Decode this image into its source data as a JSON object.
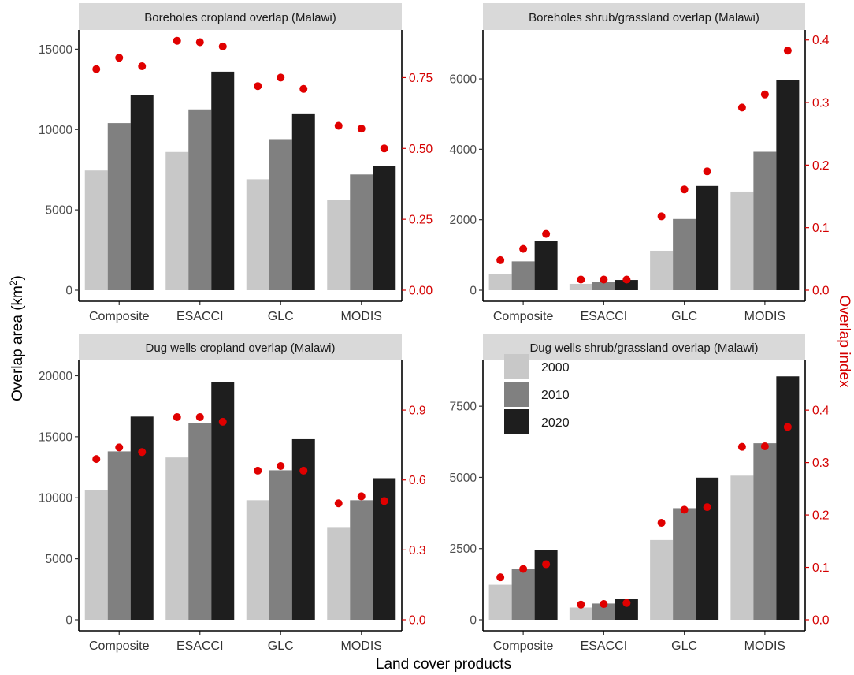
{
  "colors": {
    "y2000": "#c8c8c8",
    "y2010": "#808080",
    "y2020": "#1e1e1e",
    "index": "#e00000",
    "strip": "#d9d9d9"
  },
  "axis_titles": {
    "y_left_main": "Overlap area (km",
    "y_left_sup": "2",
    "y_left_close": ")",
    "y_right": "Overlap index",
    "x": "Land cover products"
  },
  "chart_data": [
    {
      "type": "bar",
      "title": "Boreholes cropland overlap (Malawi)",
      "categories": [
        "Composite",
        "ESACCI",
        "GLC",
        "MODIS"
      ],
      "series": [
        {
          "name": "2000",
          "values": [
            7450,
            8600,
            6900,
            5600
          ]
        },
        {
          "name": "2010",
          "values": [
            10400,
            11250,
            9400,
            7200
          ]
        },
        {
          "name": "2020",
          "values": [
            12150,
            13600,
            11000,
            7750
          ]
        }
      ],
      "index_series": [
        [
          0.78,
          0.82,
          0.79
        ],
        [
          0.88,
          0.875,
          0.86
        ],
        [
          0.72,
          0.75,
          0.71
        ],
        [
          0.58,
          0.57,
          0.5
        ]
      ],
      "ylim": [
        0,
        16000
      ],
      "yticks": [
        0,
        5000,
        10000,
        15000
      ],
      "ytick_labels": [
        "0",
        "5000",
        "10000",
        "15000"
      ],
      "y2lim": [
        0,
        0.907
      ],
      "y2ticks": [
        0,
        0.25,
        0.5,
        0.75
      ],
      "y2tick_labels": [
        "0.00",
        "0.25",
        "0.50",
        "0.75"
      ]
    },
    {
      "type": "bar",
      "title": "Boreholes shrub/grassland overlap (Malawi)",
      "categories": [
        "Composite",
        "ESACCI",
        "GLC",
        "MODIS"
      ],
      "series": [
        {
          "name": "2000",
          "values": [
            450,
            180,
            1120,
            2800
          ]
        },
        {
          "name": "2010",
          "values": [
            820,
            230,
            2020,
            3930
          ]
        },
        {
          "name": "2020",
          "values": [
            1390,
            290,
            2960,
            5960
          ]
        }
      ],
      "index_series": [
        [
          0.048,
          0.066,
          0.09
        ],
        [
          0.017,
          0.017,
          0.017
        ],
        [
          0.118,
          0.161,
          0.19
        ],
        [
          0.292,
          0.313,
          0.383
        ]
      ],
      "ylim": [
        0,
        7300
      ],
      "yticks": [
        0,
        2000,
        4000,
        6000
      ],
      "ytick_labels": [
        "0",
        "2000",
        "4000",
        "6000"
      ],
      "y2lim": [
        0,
        0.411
      ],
      "y2ticks": [
        0,
        0.1,
        0.2,
        0.3,
        0.4
      ],
      "y2tick_labels": [
        "0.0",
        "0.1",
        "0.2",
        "0.3",
        "0.4"
      ]
    },
    {
      "type": "bar",
      "title": "Dug wells cropland overlap (Malawi)",
      "categories": [
        "Composite",
        "ESACCI",
        "GLC",
        "MODIS"
      ],
      "series": [
        {
          "name": "2000",
          "values": [
            10650,
            13300,
            9800,
            7600
          ]
        },
        {
          "name": "2010",
          "values": [
            13800,
            16150,
            12250,
            9800
          ]
        },
        {
          "name": "2020",
          "values": [
            16650,
            19450,
            14800,
            11600
          ]
        }
      ],
      "index_series": [
        [
          0.69,
          0.74,
          0.72
        ],
        [
          0.87,
          0.87,
          0.85
        ],
        [
          0.64,
          0.66,
          0.64
        ],
        [
          0.5,
          0.53,
          0.51
        ]
      ],
      "ylim": [
        0,
        21000
      ],
      "yticks": [
        0,
        5000,
        10000,
        15000,
        20000
      ],
      "ytick_labels": [
        "0",
        "5000",
        "10000",
        "15000",
        "20000"
      ],
      "y2lim": [
        0,
        1.1
      ],
      "y2ticks": [
        0,
        0.3,
        0.6,
        0.9
      ],
      "y2tick_labels": [
        "0.0",
        "0.3",
        "0.6",
        "0.9"
      ]
    },
    {
      "type": "bar",
      "title": "Dug wells shrub/grassland overlap (Malawi)",
      "categories": [
        "Composite",
        "ESACCI",
        "GLC",
        "MODIS"
      ],
      "series": [
        {
          "name": "2000",
          "values": [
            1230,
            430,
            2800,
            5060
          ]
        },
        {
          "name": "2010",
          "values": [
            1790,
            570,
            3920,
            6200
          ]
        },
        {
          "name": "2020",
          "values": [
            2450,
            740,
            4990,
            8550
          ]
        }
      ],
      "index_series": [
        [
          0.081,
          0.097,
          0.106
        ],
        [
          0.029,
          0.03,
          0.032
        ],
        [
          0.185,
          0.21,
          0.215
        ],
        [
          0.33,
          0.331,
          0.368
        ]
      ],
      "ylim": [
        0,
        9000
      ],
      "yticks": [
        0,
        2500,
        5000,
        7500
      ],
      "ytick_labels": [
        "0",
        "2500",
        "5000",
        "7500"
      ],
      "y2lim": [
        0,
        0.489
      ],
      "y2ticks": [
        0,
        0.1,
        0.2,
        0.3,
        0.4
      ],
      "y2tick_labels": [
        "0.0",
        "0.1",
        "0.2",
        "0.3",
        "0.4"
      ]
    }
  ],
  "legend": [
    {
      "label": "2000",
      "color": "#c8c8c8"
    },
    {
      "label": "2010",
      "color": "#808080"
    },
    {
      "label": "2020",
      "color": "#1e1e1e"
    }
  ]
}
